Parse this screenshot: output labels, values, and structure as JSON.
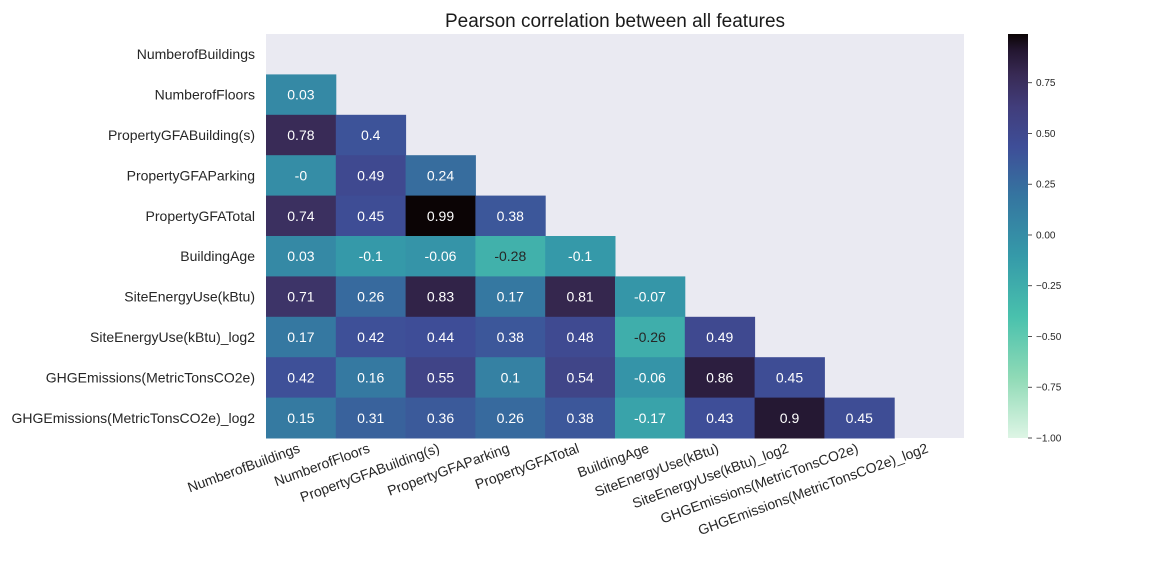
{
  "chart_data": {
    "type": "heatmap",
    "title": "Pearson correlation between all features",
    "rows": [
      "NumberofBuildings",
      "NumberofFloors",
      "PropertyGFABuilding(s)",
      "PropertyGFAParking",
      "PropertyGFATotal",
      "BuildingAge",
      "SiteEnergyUse(kBtu)",
      "SiteEnergyUse(kBtu)_log2",
      "GHGEmissions(MetricTonsCO2e)",
      "GHGEmissions(MetricTonsCO2e)_log2"
    ],
    "columns": [
      "NumberofBuildings",
      "NumberofFloors",
      "PropertyGFABuilding(s)",
      "PropertyGFAParking",
      "PropertyGFATotal",
      "BuildingAge",
      "SiteEnergyUse(kBtu)",
      "SiteEnergyUse(kBtu)_log2",
      "GHGEmissions(MetricTonsCO2e)",
      "GHGEmissions(MetricTonsCO2e)_log2"
    ],
    "mask": "upper triangle including diagonal",
    "values": [
      [
        null,
        null,
        null,
        null,
        null,
        null,
        null,
        null,
        null,
        null
      ],
      [
        0.03,
        null,
        null,
        null,
        null,
        null,
        null,
        null,
        null,
        null
      ],
      [
        0.78,
        0.4,
        null,
        null,
        null,
        null,
        null,
        null,
        null,
        null
      ],
      [
        -0.0,
        0.49,
        0.24,
        null,
        null,
        null,
        null,
        null,
        null,
        null
      ],
      [
        0.74,
        0.45,
        0.99,
        0.38,
        null,
        null,
        null,
        null,
        null,
        null
      ],
      [
        0.03,
        -0.1,
        -0.06,
        -0.28,
        -0.1,
        null,
        null,
        null,
        null,
        null
      ],
      [
        0.71,
        0.26,
        0.83,
        0.17,
        0.81,
        -0.07,
        null,
        null,
        null,
        null
      ],
      [
        0.17,
        0.42,
        0.44,
        0.38,
        0.48,
        -0.26,
        0.49,
        null,
        null,
        null
      ],
      [
        0.42,
        0.16,
        0.55,
        0.1,
        0.54,
        -0.06,
        0.86,
        0.45,
        null,
        null
      ],
      [
        0.15,
        0.31,
        0.36,
        0.26,
        0.38,
        -0.17,
        0.43,
        0.9,
        0.45,
        null
      ]
    ],
    "cell_labels": [
      [
        null,
        null,
        null,
        null,
        null,
        null,
        null,
        null,
        null,
        null
      ],
      [
        "0.03",
        null,
        null,
        null,
        null,
        null,
        null,
        null,
        null,
        null
      ],
      [
        "0.78",
        "0.4",
        null,
        null,
        null,
        null,
        null,
        null,
        null,
        null
      ],
      [
        "-0",
        "0.49",
        "0.24",
        null,
        null,
        null,
        null,
        null,
        null,
        null
      ],
      [
        "0.74",
        "0.45",
        "0.99",
        "0.38",
        null,
        null,
        null,
        null,
        null,
        null
      ],
      [
        "0.03",
        "-0.1",
        "-0.06",
        "-0.28",
        "-0.1",
        null,
        null,
        null,
        null,
        null
      ],
      [
        "0.71",
        "0.26",
        "0.83",
        "0.17",
        "0.81",
        "-0.07",
        null,
        null,
        null,
        null
      ],
      [
        "0.17",
        "0.42",
        "0.44",
        "0.38",
        "0.48",
        "-0.26",
        "0.49",
        null,
        null,
        null
      ],
      [
        "0.42",
        "0.16",
        "0.55",
        "0.1",
        "0.54",
        "-0.06",
        "0.86",
        "0.45",
        null,
        null
      ],
      [
        "0.15",
        "0.31",
        "0.36",
        "0.26",
        "0.38",
        "-0.17",
        "0.43",
        "0.9",
        "0.45",
        null
      ]
    ],
    "vmin": -1.0,
    "vmax": 0.99,
    "colormap": "mako_r",
    "colorbar_ticks": [
      0.75,
      0.5,
      0.25,
      0.0,
      -0.25,
      -0.5,
      -0.75,
      -1.0
    ],
    "colorbar_tick_labels": [
      "0.75",
      "0.50",
      "0.25",
      "0.00",
      "−0.25",
      "−0.50",
      "−0.75",
      "−1.00"
    ],
    "mask_background": "#eaeaf2",
    "colorscale_stops": [
      [
        0.0,
        "#def5e5"
      ],
      [
        0.15,
        "#8fdab6"
      ],
      [
        0.3,
        "#49c1ad"
      ],
      [
        0.45,
        "#359aa9"
      ],
      [
        0.6,
        "#3575a0"
      ],
      [
        0.72,
        "#3e4e98"
      ],
      [
        0.82,
        "#413d7b"
      ],
      [
        0.9,
        "#382a54"
      ],
      [
        0.96,
        "#231630"
      ],
      [
        1.0,
        "#0b0405"
      ]
    ]
  }
}
